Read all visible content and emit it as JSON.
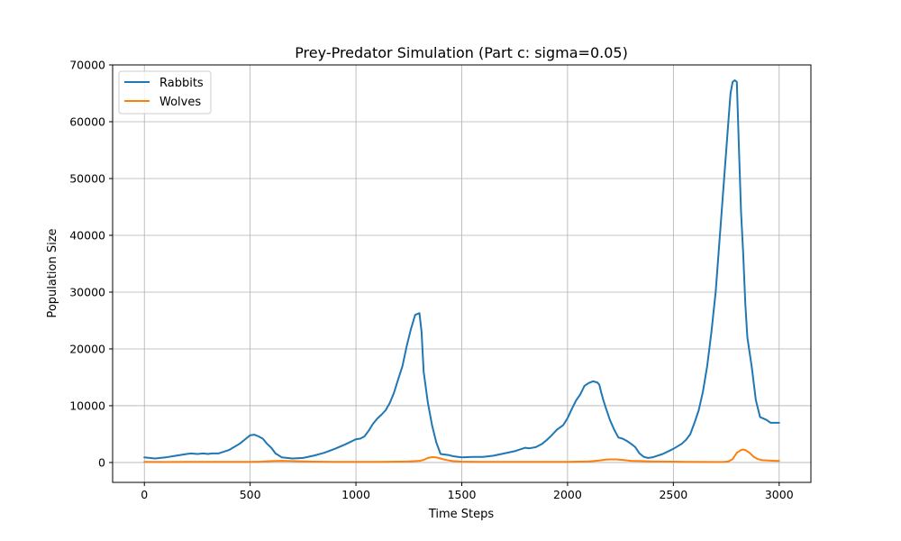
{
  "chart_data": {
    "type": "line",
    "title": "Prey-Predator Simulation (Part c: sigma=0.05)",
    "xlabel": "Time Steps",
    "ylabel": "Population Size",
    "xlim": [
      -150,
      3150
    ],
    "ylim": [
      -3500,
      70000
    ],
    "xticks": [
      0,
      500,
      1000,
      1500,
      2000,
      2500,
      3000
    ],
    "yticks": [
      0,
      10000,
      20000,
      30000,
      40000,
      50000,
      60000,
      70000
    ],
    "grid": true,
    "legend_position": "top-left",
    "series": [
      {
        "name": "Rabbits",
        "color": "#1f77b4",
        "x": [
          0,
          50,
          100,
          150,
          200,
          220,
          250,
          280,
          300,
          320,
          350,
          400,
          450,
          480,
          500,
          520,
          540,
          560,
          580,
          600,
          620,
          650,
          700,
          750,
          800,
          850,
          900,
          950,
          1000,
          1020,
          1040,
          1060,
          1080,
          1100,
          1120,
          1140,
          1160,
          1180,
          1200,
          1220,
          1240,
          1260,
          1280,
          1300,
          1310,
          1320,
          1340,
          1360,
          1380,
          1400,
          1420,
          1440,
          1460,
          1500,
          1550,
          1600,
          1650,
          1700,
          1750,
          1800,
          1820,
          1850,
          1880,
          1900,
          1920,
          1950,
          1980,
          2000,
          2020,
          2040,
          2060,
          2080,
          2100,
          2120,
          2140,
          2150,
          2160,
          2170,
          2180,
          2200,
          2220,
          2240,
          2260,
          2280,
          2300,
          2320,
          2340,
          2360,
          2380,
          2400,
          2450,
          2500,
          2540,
          2560,
          2580,
          2600,
          2620,
          2640,
          2660,
          2680,
          2700,
          2720,
          2740,
          2760,
          2770,
          2780,
          2790,
          2800,
          2810,
          2820,
          2830,
          2840,
          2850,
          2870,
          2890,
          2910,
          2940,
          2960,
          2980,
          3000
        ],
        "values": [
          900,
          700,
          900,
          1200,
          1500,
          1600,
          1500,
          1600,
          1500,
          1600,
          1600,
          2200,
          3300,
          4200,
          4800,
          4900,
          4600,
          4200,
          3300,
          2600,
          1600,
          900,
          700,
          800,
          1200,
          1700,
          2400,
          3200,
          4100,
          4200,
          4600,
          5600,
          6800,
          7700,
          8400,
          9200,
          10500,
          12300,
          14700,
          17000,
          20500,
          23500,
          26000,
          26300,
          23000,
          16000,
          10500,
          6500,
          3500,
          1500,
          1400,
          1300,
          1100,
          900,
          1000,
          1000,
          1200,
          1600,
          2000,
          2600,
          2500,
          2700,
          3300,
          3900,
          4600,
          5800,
          6600,
          7800,
          9400,
          10900,
          12000,
          13500,
          14000,
          14300,
          14100,
          13700,
          12200,
          10900,
          9700,
          7500,
          5800,
          4400,
          4200,
          3800,
          3300,
          2700,
          1600,
          1000,
          800,
          900,
          1500,
          2400,
          3300,
          4000,
          5000,
          7000,
          9200,
          12500,
          17000,
          23000,
          30000,
          40000,
          50000,
          60000,
          65000,
          67000,
          67300,
          67000,
          55000,
          44000,
          37000,
          28000,
          22000,
          17000,
          11000,
          8000,
          7500,
          7000,
          7000,
          7000
        ]
      },
      {
        "name": "Wolves",
        "color": "#ff7f0e",
        "x": [
          0,
          100,
          200,
          300,
          400,
          500,
          550,
          600,
          650,
          700,
          800,
          900,
          1000,
          1100,
          1200,
          1250,
          1300,
          1320,
          1340,
          1360,
          1380,
          1400,
          1420,
          1440,
          1460,
          1500,
          1600,
          1700,
          1800,
          1900,
          2000,
          2100,
          2150,
          2180,
          2200,
          2230,
          2260,
          2300,
          2350,
          2400,
          2500,
          2600,
          2700,
          2740,
          2760,
          2780,
          2800,
          2820,
          2830,
          2840,
          2860,
          2880,
          2900,
          2920,
          2950,
          2980,
          3000
        ],
        "values": [
          100,
          80,
          100,
          100,
          100,
          100,
          150,
          250,
          300,
          250,
          150,
          100,
          100,
          120,
          150,
          200,
          300,
          450,
          800,
          950,
          900,
          700,
          500,
          350,
          250,
          150,
          100,
          100,
          100,
          100,
          100,
          200,
          350,
          500,
          550,
          550,
          450,
          300,
          250,
          200,
          150,
          100,
          80,
          100,
          200,
          600,
          1700,
          2200,
          2300,
          2200,
          1700,
          1000,
          600,
          400,
          350,
          300,
          300
        ]
      }
    ]
  }
}
